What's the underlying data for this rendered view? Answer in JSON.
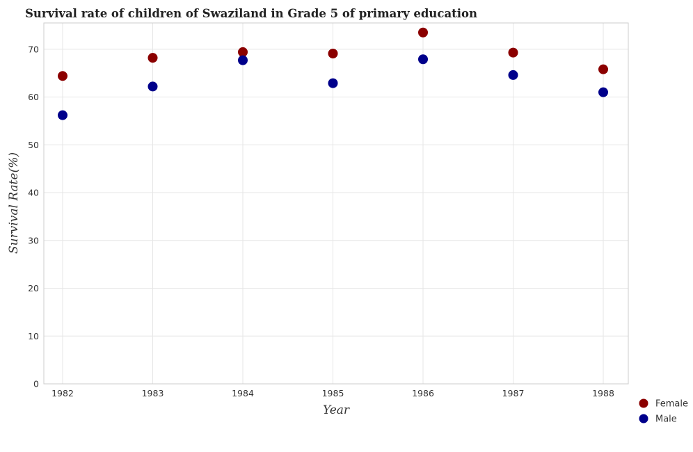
{
  "chart_data": {
    "type": "scatter",
    "title": "Survival rate of children of Swaziland in Grade 5 of primary education",
    "xlabel": "Year",
    "ylabel": "Survival Rate(%)",
    "categories": [
      "1982",
      "1983",
      "1984",
      "1985",
      "1986",
      "1987",
      "1988"
    ],
    "yticks": [
      "0",
      "10",
      "20",
      "30",
      "40",
      "50",
      "60",
      "70"
    ],
    "ylim": [
      0,
      75.5
    ],
    "grid": true,
    "legend_position": "bottom-right",
    "series": [
      {
        "name": "Female",
        "color": "#8b0000",
        "values": [
          64.4,
          68.2,
          69.4,
          69.1,
          73.5,
          69.3,
          65.8
        ]
      },
      {
        "name": "Male",
        "color": "#00008b",
        "values": [
          56.2,
          62.2,
          67.7,
          62.9,
          67.9,
          64.6,
          61.0
        ]
      }
    ]
  }
}
